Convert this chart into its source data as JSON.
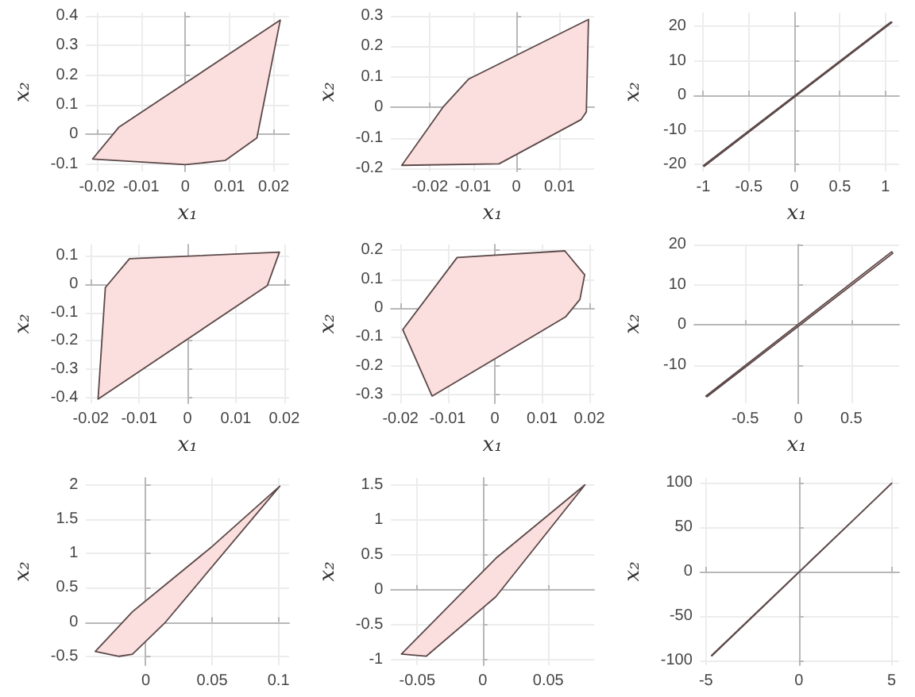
{
  "chart_data": [
    {
      "type": "area",
      "xlabel": "x₁",
      "ylabel": "x₂",
      "xlim": [
        -0.0225,
        0.0235
      ],
      "xticks": [
        -0.02,
        -0.01,
        0,
        0.01,
        0.02
      ],
      "ylim": [
        -0.125,
        0.41
      ],
      "yticks": [
        -0.1,
        0,
        0.1,
        0.2,
        0.3,
        0.4
      ],
      "grid": true,
      "series": [
        {
          "color": "#fbdfdf",
          "x": [
            -0.021,
            -0.015,
            0.0215,
            0.0162,
            0.009,
            0,
            -0.021
          ],
          "values": [
            -0.083,
            0.025,
            0.385,
            -0.012,
            -0.088,
            -0.102,
            -0.083
          ]
        }
      ]
    },
    {
      "type": "area",
      "xlabel": "x₁",
      "ylabel": "x₂",
      "xlim": [
        -0.029,
        0.018
      ],
      "xticks": [
        -0.02,
        -0.01,
        0,
        0.01
      ],
      "ylim": [
        -0.21,
        0.31
      ],
      "yticks": [
        -0.2,
        -0.1,
        0,
        0.1,
        0.2,
        0.3
      ],
      "grid": true,
      "series": [
        {
          "color": "#fbdfdf",
          "x": [
            -0.0265,
            -0.017,
            -0.011,
            0.0167,
            0.0162,
            0.015,
            -0.004,
            -0.0265
          ],
          "values": [
            -0.19,
            0,
            0.093,
            0.288,
            -0.015,
            -0.04,
            -0.185,
            -0.19
          ]
        }
      ]
    },
    {
      "type": "area",
      "xlabel": "x₁",
      "ylabel": "x₂",
      "xlim": [
        -1.1,
        1.15
      ],
      "xticks": [
        -1,
        -0.5,
        0,
        0.5,
        1
      ],
      "ylim": [
        -22,
        24
      ],
      "yticks": [
        -20,
        -10,
        0,
        10,
        20
      ],
      "grid": true,
      "series": [
        {
          "color": "#fbdfdf",
          "x": [
            -1,
            1.06,
            1.07,
            -0.99,
            -1
          ],
          "values": [
            -20.3,
            21.3,
            21.2,
            -20.5,
            -20.3
          ]
        }
      ]
    },
    {
      "type": "area",
      "xlabel": "x₁",
      "ylabel": "x₂",
      "xlim": [
        -0.021,
        0.021
      ],
      "xticks": [
        -0.02,
        -0.01,
        0,
        0.01,
        0.02
      ],
      "ylim": [
        -0.42,
        0.14
      ],
      "yticks": [
        -0.4,
        -0.3,
        -0.2,
        -0.1,
        0,
        0.1
      ],
      "grid": true,
      "series": [
        {
          "color": "#fbdfdf",
          "x": [
            -0.0185,
            -0.017,
            -0.012,
            0.019,
            0.0165,
            -0.0185
          ],
          "values": [
            -0.405,
            -0.012,
            0.09,
            0.113,
            -0.005,
            -0.405
          ]
        }
      ]
    },
    {
      "type": "area",
      "xlabel": "x₁",
      "ylabel": "x₂",
      "xlim": [
        -0.022,
        0.021
      ],
      "xticks": [
        -0.02,
        -0.01,
        0,
        0.01,
        0.02
      ],
      "ylim": [
        -0.33,
        0.22
      ],
      "yticks": [
        -0.3,
        -0.2,
        -0.1,
        0,
        0.1,
        0.2
      ],
      "grid": true,
      "series": [
        {
          "color": "#fbdfdf",
          "x": [
            -0.0195,
            -0.008,
            0.0148,
            0.019,
            0.018,
            0.015,
            -0.0133,
            -0.0195
          ],
          "values": [
            -0.075,
            0.175,
            0.198,
            0.115,
            0.03,
            -0.03,
            -0.305,
            -0.075
          ]
        }
      ]
    },
    {
      "type": "area",
      "xlabel": "x₁",
      "ylabel": "x₂",
      "xlim": [
        -0.98,
        0.95
      ],
      "xticks": [
        -0.5,
        0,
        0.5
      ],
      "ylim": [
        -19.5,
        20
      ],
      "yticks": [
        -10,
        0,
        10,
        20
      ],
      "grid": true,
      "series": [
        {
          "color": "#fbdfdf",
          "x": [
            -0.87,
            0.88,
            0.89,
            -0.86,
            -0.87
          ],
          "values": [
            -17.7,
            18.2,
            17.8,
            -17.9,
            -17.7
          ]
        }
      ]
    },
    {
      "type": "area",
      "ylabel": "x₂",
      "xlim": [
        -0.045,
        0.108
      ],
      "xticks": [
        0,
        0.05,
        0.1
      ],
      "ylim": [
        -0.63,
        2.1
      ],
      "yticks": [
        -0.5,
        0,
        0.5,
        1,
        1.5,
        2
      ],
      "grid": true,
      "series": [
        {
          "color": "#fbdfdf",
          "x": [
            -0.038,
            -0.02,
            -0.01,
            0.015,
            0.101,
            0.05,
            -0.01,
            -0.038
          ],
          "values": [
            -0.43,
            -0.5,
            -0.47,
            0,
            1.98,
            1.1,
            0.15,
            -0.43
          ]
        }
      ]
    },
    {
      "type": "area",
      "ylabel": "x₂",
      "xlim": [
        -0.07,
        0.085
      ],
      "xticks": [
        -0.05,
        0,
        0.05
      ],
      "ylim": [
        -1.08,
        1.6
      ],
      "yticks": [
        -1,
        -0.5,
        0,
        0.5,
        1,
        1.5
      ],
      "grid": true,
      "series": [
        {
          "color": "#fbdfdf",
          "x": [
            -0.062,
            -0.043,
            0.01,
            0.078,
            0.01,
            -0.062
          ],
          "values": [
            -0.92,
            -0.95,
            -0.1,
            1.5,
            0.45,
            -0.92
          ]
        }
      ]
    },
    {
      "type": "area",
      "ylabel": "x₂",
      "xlim": [
        -5.3,
        5.4
      ],
      "xticks": [
        -5,
        0,
        5
      ],
      "ylim": [
        -105,
        105
      ],
      "yticks": [
        -100,
        -50,
        0,
        50,
        100
      ],
      "grid": true,
      "series": [
        {
          "color": "#fbdfdf",
          "x": [
            -4.7,
            4.98,
            5,
            -4.68,
            -4.7
          ],
          "values": [
            -94,
            98.5,
            99,
            -94.5,
            -94
          ]
        }
      ]
    }
  ]
}
